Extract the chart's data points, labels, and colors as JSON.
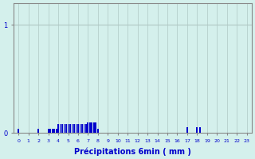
{
  "xlabel": "Précipitations 6min ( mm )",
  "background_color": "#d4f0ec",
  "bar_color": "#0000cc",
  "grid_color": "#b0c8c4",
  "axis_color": "#888888",
  "text_color": "#0000cc",
  "xlim": [
    -0.5,
    23.5
  ],
  "ylim": [
    0,
    1.2
  ],
  "yticks": [
    0,
    1
  ],
  "xticks": [
    0,
    1,
    2,
    3,
    4,
    5,
    6,
    7,
    8,
    9,
    10,
    11,
    12,
    13,
    14,
    15,
    16,
    17,
    18,
    19,
    20,
    21,
    22,
    23
  ],
  "bar_width": 0.15,
  "bars": [
    [
      0.0,
      0.04
    ],
    [
      2.0,
      0.04
    ],
    [
      3.0,
      0.04
    ],
    [
      3.2,
      0.04
    ],
    [
      3.4,
      0.04
    ],
    [
      3.6,
      0.04
    ],
    [
      3.8,
      0.04
    ],
    [
      4.0,
      0.08
    ],
    [
      4.2,
      0.08
    ],
    [
      4.4,
      0.08
    ],
    [
      4.6,
      0.08
    ],
    [
      4.8,
      0.08
    ],
    [
      5.0,
      0.08
    ],
    [
      5.2,
      0.08
    ],
    [
      5.4,
      0.08
    ],
    [
      5.6,
      0.08
    ],
    [
      5.8,
      0.08
    ],
    [
      6.0,
      0.08
    ],
    [
      6.2,
      0.08
    ],
    [
      6.4,
      0.08
    ],
    [
      6.6,
      0.08
    ],
    [
      6.8,
      0.08
    ],
    [
      7.0,
      0.1
    ],
    [
      7.2,
      0.1
    ],
    [
      7.4,
      0.1
    ],
    [
      7.6,
      0.1
    ],
    [
      7.8,
      0.1
    ],
    [
      8.0,
      0.04
    ],
    [
      17.0,
      0.05
    ],
    [
      18.0,
      0.05
    ],
    [
      18.3,
      0.05
    ]
  ]
}
